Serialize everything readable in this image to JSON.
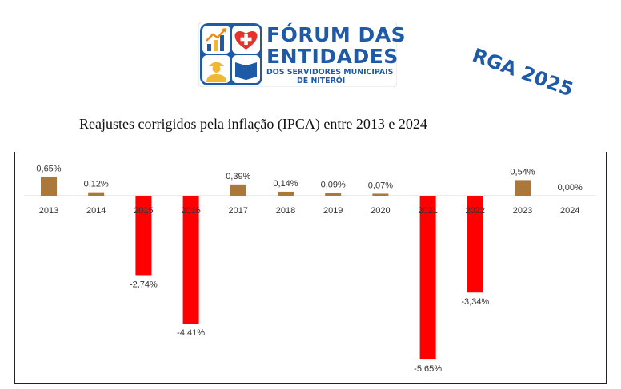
{
  "logo": {
    "line1": "FÓRUM DAS",
    "line2": "ENTIDADES",
    "line3": "DOS SERVIDORES MUNICIPAIS",
    "line4": "DE NITERÓI",
    "icons": [
      "chart-growth-icon",
      "heart-cross-icon",
      "worker-icon",
      "book-icon"
    ]
  },
  "stamp": "RGA 2025",
  "colors": {
    "brand": "#1f5aa6",
    "positive": "#a9783a",
    "negative": "#ff0000"
  },
  "chart_data": {
    "type": "bar",
    "title": "Reajustes corrigidos pela inflação (IPCA) entre 2013 e 2024",
    "xlabel": "",
    "ylabel": "",
    "categories": [
      "2013",
      "2014",
      "2015",
      "2016",
      "2017",
      "2018",
      "2019",
      "2020",
      "2021",
      "2022",
      "2023",
      "2024"
    ],
    "values": [
      0.65,
      0.12,
      -2.74,
      -4.41,
      0.39,
      0.14,
      0.09,
      0.07,
      -5.65,
      -3.34,
      0.54,
      0.0
    ],
    "data_labels": [
      "0,65%",
      "0,12%",
      "-2,74%",
      "-4,41%",
      "0,39%",
      "0,14%",
      "0,09%",
      "0,07%",
      "-5,65%",
      "-3,34%",
      "0,54%",
      "0,00%"
    ],
    "ylim": [
      -5.65,
      0.65
    ],
    "grid": false,
    "legend": "none"
  }
}
